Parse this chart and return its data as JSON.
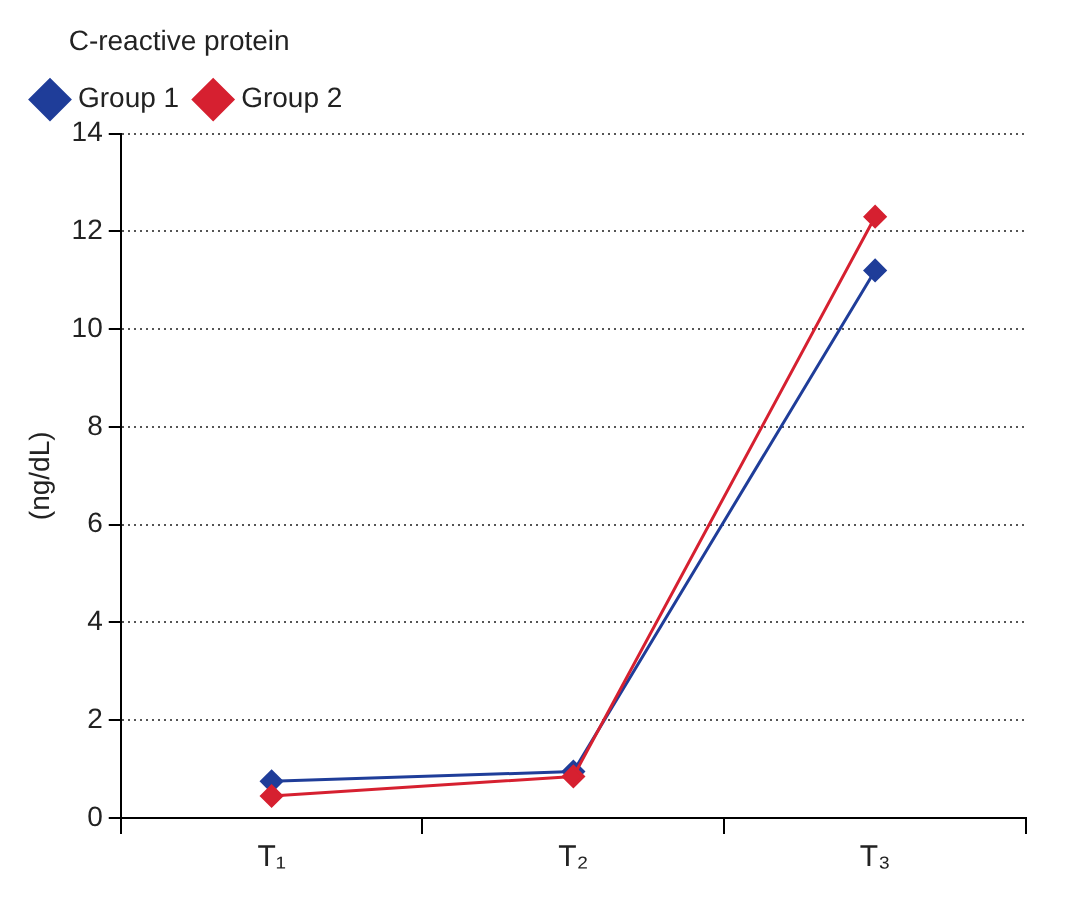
{
  "chart_data": {
    "type": "line",
    "legend_title": "C-reactive protein",
    "ylabel": "(ng/dL)",
    "categories": [
      "T₁",
      "T₂",
      "T₃"
    ],
    "series": [
      {
        "name": "Group 1",
        "color": "#1f3d99",
        "values": [
          0.75,
          0.95,
          11.2
        ]
      },
      {
        "name": "Group 2",
        "color": "#d62030",
        "values": [
          0.45,
          0.85,
          12.3
        ]
      }
    ],
    "ylim": [
      0,
      14
    ],
    "yticks": [
      0,
      2,
      4,
      6,
      8,
      10,
      12,
      14
    ],
    "grid": "y",
    "legend": "top left",
    "marker": "diamond",
    "line_style": "solid"
  }
}
